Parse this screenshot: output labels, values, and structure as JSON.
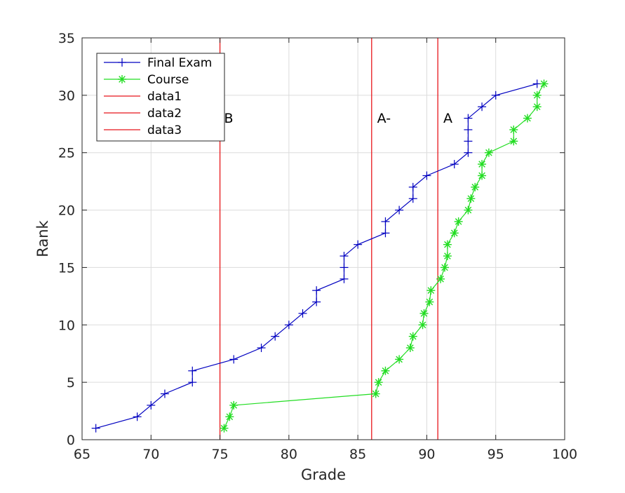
{
  "chart_data": {
    "type": "line",
    "xlabel": "Grade",
    "ylabel": "Rank",
    "xlim": [
      65,
      100
    ],
    "ylim": [
      0,
      35
    ],
    "xticks": [
      65,
      70,
      75,
      80,
      85,
      90,
      95,
      100
    ],
    "yticks": [
      0,
      5,
      10,
      15,
      20,
      25,
      30,
      35
    ],
    "grid": true,
    "legend_location": "top-left",
    "series": [
      {
        "name": "Final Exam",
        "color": "#0000c0",
        "marker": "plus",
        "x": [
          66,
          69,
          70,
          71,
          73,
          73,
          76,
          78,
          79,
          80,
          81,
          82,
          82,
          84,
          84,
          84,
          85,
          87,
          87,
          88,
          89,
          89,
          90,
          92,
          93,
          93,
          93,
          93,
          94,
          95,
          98
        ],
        "y": [
          1,
          2,
          3,
          4,
          5,
          6,
          7,
          8,
          9,
          10,
          11,
          12,
          13,
          14,
          15,
          16,
          17,
          18,
          19,
          20,
          21,
          22,
          23,
          24,
          25,
          26,
          27,
          28,
          29,
          30,
          31
        ]
      },
      {
        "name": "Course",
        "color": "#22dd22",
        "marker": "asterisk",
        "x": [
          75.3,
          75.7,
          76.0,
          86.3,
          86.5,
          87.0,
          88.0,
          88.8,
          89.0,
          89.7,
          89.8,
          90.2,
          90.3,
          91.0,
          91.3,
          91.5,
          91.5,
          92.0,
          92.3,
          93.0,
          93.2,
          93.5,
          94.0,
          94.0,
          94.5,
          96.3,
          96.3,
          97.3,
          98.0,
          98.0,
          98.5
        ],
        "y": [
          1,
          2,
          3,
          4,
          5,
          6,
          7,
          8,
          9,
          10,
          11,
          12,
          13,
          14,
          15,
          16,
          17,
          18,
          19,
          20,
          21,
          22,
          23,
          24,
          25,
          26,
          27,
          28,
          29,
          30,
          31
        ]
      }
    ],
    "vlines": [
      {
        "name": "data1",
        "x": 75.0,
        "color": "#e8151a"
      },
      {
        "name": "data2",
        "x": 86.0,
        "color": "#e8151a"
      },
      {
        "name": "data3",
        "x": 90.8,
        "color": "#e8151a"
      }
    ],
    "annotations": [
      {
        "text": "B",
        "x": 75.3,
        "y": 27.6
      },
      {
        "text": "A-",
        "x": 86.4,
        "y": 27.6
      },
      {
        "text": "A",
        "x": 91.2,
        "y": 27.6
      }
    ]
  }
}
